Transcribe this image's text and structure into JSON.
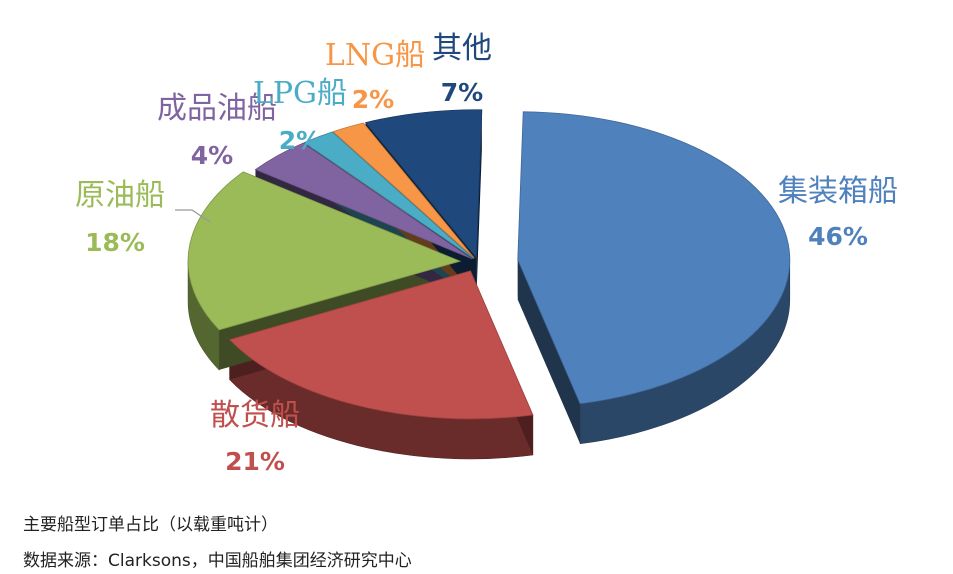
{
  "chart_data": {
    "type": "pie",
    "categories": [
      "集装箱船",
      "散货船",
      "原油船",
      "成品油船",
      "LPG船",
      "LNG船",
      "其他"
    ],
    "values": [
      46,
      21,
      18,
      4,
      2,
      2,
      7
    ],
    "value_labels": [
      "46%",
      "21%",
      "18%",
      "4%",
      "2%",
      "2%",
      "7%"
    ],
    "colors": [
      "#4F81BD",
      "#C0504D",
      "#9BBB59",
      "#8064A2",
      "#4BACC6",
      "#F79646",
      "#1F497D"
    ],
    "legend": "none",
    "style": "3d-exploded"
  },
  "captions": {
    "title": "主要船型订单占比（以载重吨计）",
    "source": "数据来源：Clarksons，中国船舶集团经济研究中心"
  }
}
